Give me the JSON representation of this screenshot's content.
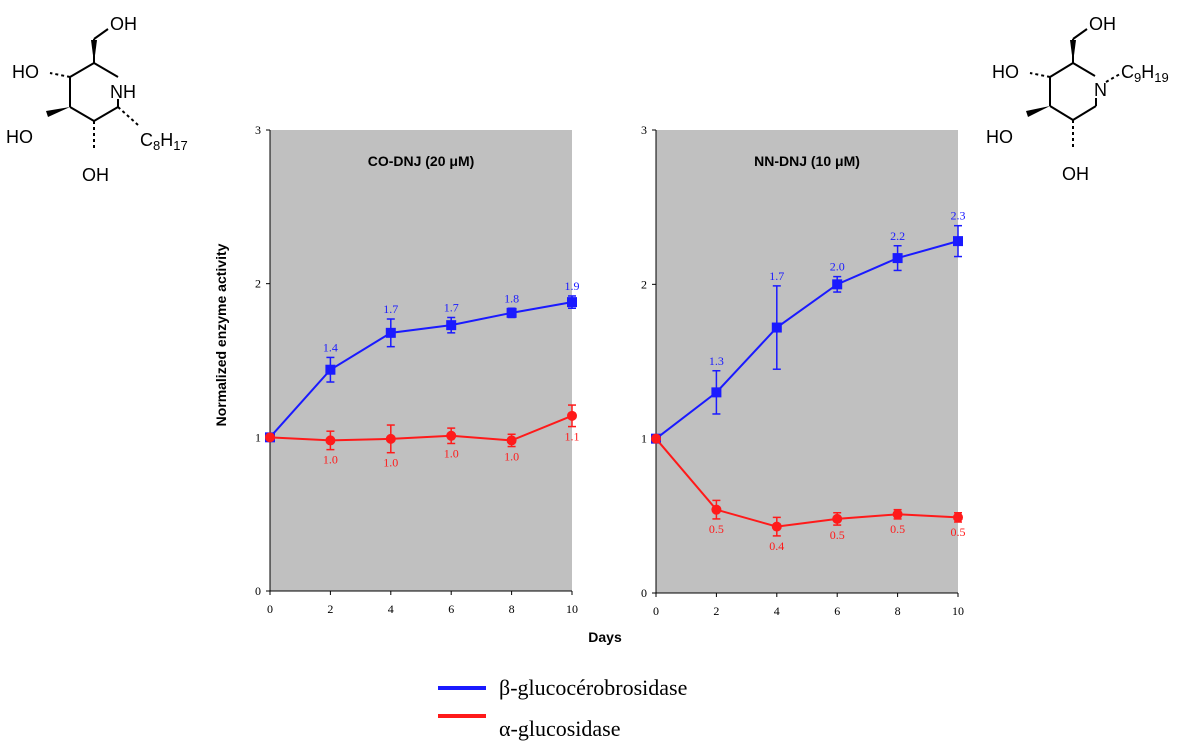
{
  "structures": {
    "left": {
      "oh_top": "OH",
      "ho_left": "HO",
      "nh": "NH",
      "ho_bottom": "HO",
      "oh_bottom": "OH",
      "chain": "C",
      "chain_sub": "8",
      "chain_h": "H",
      "chain_h_sub": "17"
    },
    "right": {
      "oh_top": "OH",
      "ho_left": "HO",
      "n": "N",
      "chain": "C",
      "chain_sub": "9",
      "chain_h": "H",
      "chain_h_sub": "19",
      "ho_bottom": "HO",
      "oh_bottom": "OH"
    }
  },
  "chart_data": [
    {
      "type": "line",
      "title": "CO-DNJ (20 μM)",
      "xlabel": "Days",
      "ylabel": "Normalized enzyme activity",
      "x": [
        0,
        2,
        4,
        6,
        8,
        10
      ],
      "xticks": [
        "0",
        "2",
        "4",
        "6",
        "8",
        "10"
      ],
      "yticks": [
        "0",
        "1",
        "2",
        "3"
      ],
      "xlim": [
        0,
        10
      ],
      "ylim": [
        0,
        3
      ],
      "background": "#c0c0c0",
      "series": [
        {
          "name": "β-glucocérobrosidase",
          "color": "#1a1aff",
          "marker": "square",
          "values": [
            1.0,
            1.44,
            1.68,
            1.73,
            1.81,
            1.88
          ],
          "errors": [
            0.0,
            0.08,
            0.09,
            0.05,
            0.03,
            0.04
          ],
          "labels": [
            "",
            "1.4",
            "1.7",
            "1.7",
            "1.8",
            "1.9"
          ]
        },
        {
          "name": "α-glucosidase",
          "color": "#ff1a1a",
          "marker": "circle",
          "values": [
            1.0,
            0.98,
            0.99,
            1.01,
            0.98,
            1.14
          ],
          "errors": [
            0.0,
            0.06,
            0.09,
            0.05,
            0.04,
            0.07
          ],
          "labels": [
            "",
            "1.0",
            "1.0",
            "1.0",
            "1.0",
            "1.1"
          ]
        }
      ]
    },
    {
      "type": "line",
      "title": "NN-DNJ (10 μM)",
      "xlabel": "Days",
      "x": [
        0,
        2,
        4,
        6,
        8,
        10
      ],
      "xticks": [
        "0",
        "2",
        "4",
        "6",
        "8",
        "10"
      ],
      "yticks": [
        "0",
        "1",
        "2",
        "3"
      ],
      "xlim": [
        0,
        10
      ],
      "ylim": [
        0,
        3
      ],
      "background": "#c0c0c0",
      "series": [
        {
          "name": "β-glucocérobrosidase",
          "color": "#1a1aff",
          "marker": "square",
          "values": [
            1.0,
            1.3,
            1.72,
            2.0,
            2.17,
            2.28
          ],
          "errors": [
            0.0,
            0.14,
            0.27,
            0.05,
            0.08,
            0.1
          ],
          "labels": [
            "",
            "1.3",
            "1.7",
            "2.0",
            "2.2",
            "2.3"
          ]
        },
        {
          "name": "α-glucosidase",
          "color": "#ff1a1a",
          "marker": "circle",
          "values": [
            1.0,
            0.54,
            0.43,
            0.48,
            0.51,
            0.49
          ],
          "errors": [
            0.0,
            0.06,
            0.06,
            0.04,
            0.03,
            0.03
          ],
          "labels": [
            "",
            "0.5",
            "0.4",
            "0.5",
            "0.5",
            "0.5"
          ]
        }
      ]
    }
  ],
  "legend": [
    {
      "label": "β-glucocérobrosidase",
      "color": "#1a1aff"
    },
    {
      "label": "α-glucosidase",
      "color": "#ff1a1a"
    }
  ]
}
